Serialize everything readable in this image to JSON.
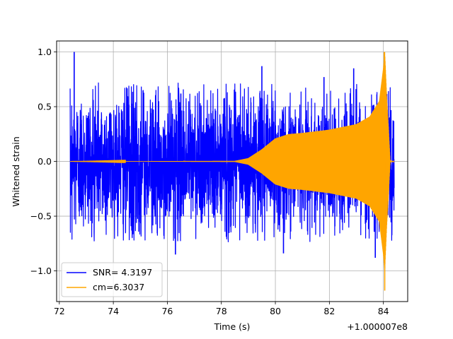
{
  "chart_data": {
    "type": "line",
    "title": "",
    "xlabel": "Time (s)",
    "ylabel": "Whitened strain",
    "x_offset_label": "+1.000007e8",
    "xlim": [
      71.9,
      84.9
    ],
    "ylim": [
      -1.28,
      1.1
    ],
    "x_ticks": [
      72,
      74,
      76,
      78,
      80,
      82,
      84
    ],
    "x_tick_labels": [
      "72",
      "74",
      "76",
      "78",
      "80",
      "82",
      "84"
    ],
    "y_ticks": [
      -1.0,
      -0.5,
      0.0,
      0.5,
      1.0
    ],
    "y_tick_labels": [
      "−1.0",
      "−0.5",
      "0.0",
      "0.5",
      "1.0"
    ],
    "grid": true,
    "legend_position": "lower-left",
    "series": [
      {
        "name": "SNR= 4.3197",
        "color": "#0000ff",
        "kind": "noise",
        "x_range": [
          72.4,
          84.4
        ],
        "typical_amplitude": 0.5,
        "peaks": [
          {
            "x": 72.55,
            "y": 1.0
          },
          {
            "x": 76.5,
            "y": 0.62
          },
          {
            "x": 79.5,
            "y": 0.87
          },
          {
            "x": 81.8,
            "y": 0.77
          },
          {
            "x": 82.9,
            "y": 0.85
          },
          {
            "x": 76.3,
            "y": -0.85
          },
          {
            "x": 80.3,
            "y": -0.84
          },
          {
            "x": 83.7,
            "y": -0.88
          }
        ]
      },
      {
        "name": "cm=6.3037",
        "color": "#ffa500",
        "kind": "chirp",
        "x_range": [
          72.4,
          84.4
        ],
        "envelope": [
          {
            "x": 72.4,
            "amplitude": 0.0
          },
          {
            "x": 78.5,
            "amplitude": 0.005
          },
          {
            "x": 79.0,
            "amplitude": 0.03
          },
          {
            "x": 79.5,
            "amplitude": 0.11
          },
          {
            "x": 80.0,
            "amplitude": 0.21
          },
          {
            "x": 80.5,
            "amplitude": 0.25
          },
          {
            "x": 81.0,
            "amplitude": 0.26
          },
          {
            "x": 82.0,
            "amplitude": 0.29
          },
          {
            "x": 83.0,
            "amplitude": 0.34
          },
          {
            "x": 83.5,
            "amplitude": 0.41
          },
          {
            "x": 83.85,
            "amplitude": 0.55
          },
          {
            "x": 84.0,
            "amplitude": 0.85
          },
          {
            "x": 84.05,
            "amplitude": 1.0
          },
          {
            "x": 84.12,
            "amplitude": 0.6
          },
          {
            "x": 84.2,
            "amplitude": 0.25
          },
          {
            "x": 84.25,
            "amplitude": 0.01
          },
          {
            "x": 84.4,
            "amplitude": 0.0
          }
        ],
        "peak_max": {
          "x": 84.03,
          "y": 1.0
        },
        "peak_min": {
          "x": 84.05,
          "y": -1.18
        }
      }
    ]
  }
}
